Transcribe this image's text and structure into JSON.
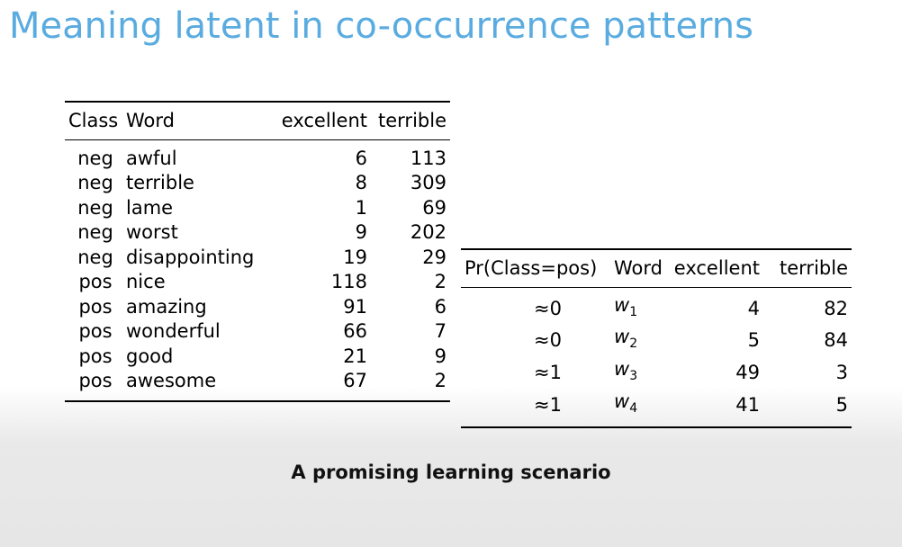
{
  "title": "Meaning latent in co-occurrence patterns",
  "left_table": {
    "headers": [
      "Class",
      "Word",
      "excellent",
      "terrible"
    ],
    "rows": [
      [
        "neg",
        "awful",
        "6",
        "113"
      ],
      [
        "neg",
        "terrible",
        "8",
        "309"
      ],
      [
        "neg",
        "lame",
        "1",
        "69"
      ],
      [
        "neg",
        "worst",
        "9",
        "202"
      ],
      [
        "neg",
        "disappointing",
        "19",
        "29"
      ],
      [
        "pos",
        "nice",
        "118",
        "2"
      ],
      [
        "pos",
        "amazing",
        "91",
        "6"
      ],
      [
        "pos",
        "wonderful",
        "66",
        "7"
      ],
      [
        "pos",
        "good",
        "21",
        "9"
      ],
      [
        "pos",
        "awesome",
        "67",
        "2"
      ]
    ]
  },
  "right_table": {
    "headers": [
      "Pr(Class=pos)",
      "Word",
      "excellent",
      "terrible"
    ],
    "rows": [
      {
        "pr": "≈0",
        "word": "w",
        "sub": "1",
        "excellent": "4",
        "terrible": "82"
      },
      {
        "pr": "≈0",
        "word": "w",
        "sub": "2",
        "excellent": "5",
        "terrible": "84"
      },
      {
        "pr": "≈1",
        "word": "w",
        "sub": "3",
        "excellent": "49",
        "terrible": "3"
      },
      {
        "pr": "≈1",
        "word": "w",
        "sub": "4",
        "excellent": "41",
        "terrible": "5"
      }
    ]
  },
  "caption": "A promising learning scenario"
}
